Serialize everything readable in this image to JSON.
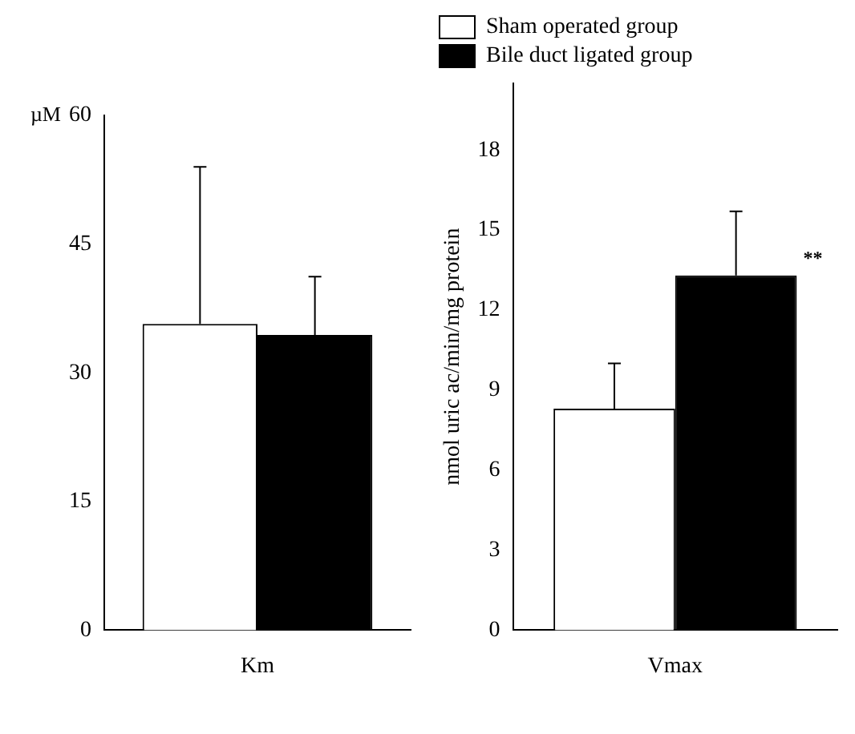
{
  "chart_data": [
    {
      "type": "bar",
      "ylabel": "µM",
      "categories": [
        "Km"
      ],
      "ylim": [
        0,
        60
      ],
      "yticks": [
        0,
        15,
        30,
        45,
        60
      ],
      "grid": false,
      "legend": false,
      "series": [
        {
          "color": "#ffffff",
          "values": [
            35.7
          ],
          "errors": [
            [
              35.7,
              54
            ]
          ]
        },
        {
          "color": "#000000",
          "values": [
            34.4
          ],
          "errors": [
            [
              34.4,
              41.2
            ]
          ]
        }
      ]
    },
    {
      "type": "bar",
      "ylabel": "nmol uric ac/min/mg protein",
      "categories": [
        "Vmax"
      ],
      "ylim": [
        0,
        20.5
      ],
      "yticks": [
        0,
        3,
        6,
        9,
        12,
        15,
        18
      ],
      "grid": false,
      "legend": "top",
      "annotations": [
        "**"
      ],
      "series": [
        {
          "name": "Sham operated group",
          "color": "#ffffff",
          "values": [
            8.3
          ],
          "errors": [
            [
              8.3,
              10
            ]
          ]
        },
        {
          "name": "Bile duct ligated group",
          "color": "#000000",
          "values": [
            13.3
          ],
          "errors": [
            [
              13.3,
              15.7
            ]
          ]
        }
      ]
    }
  ]
}
